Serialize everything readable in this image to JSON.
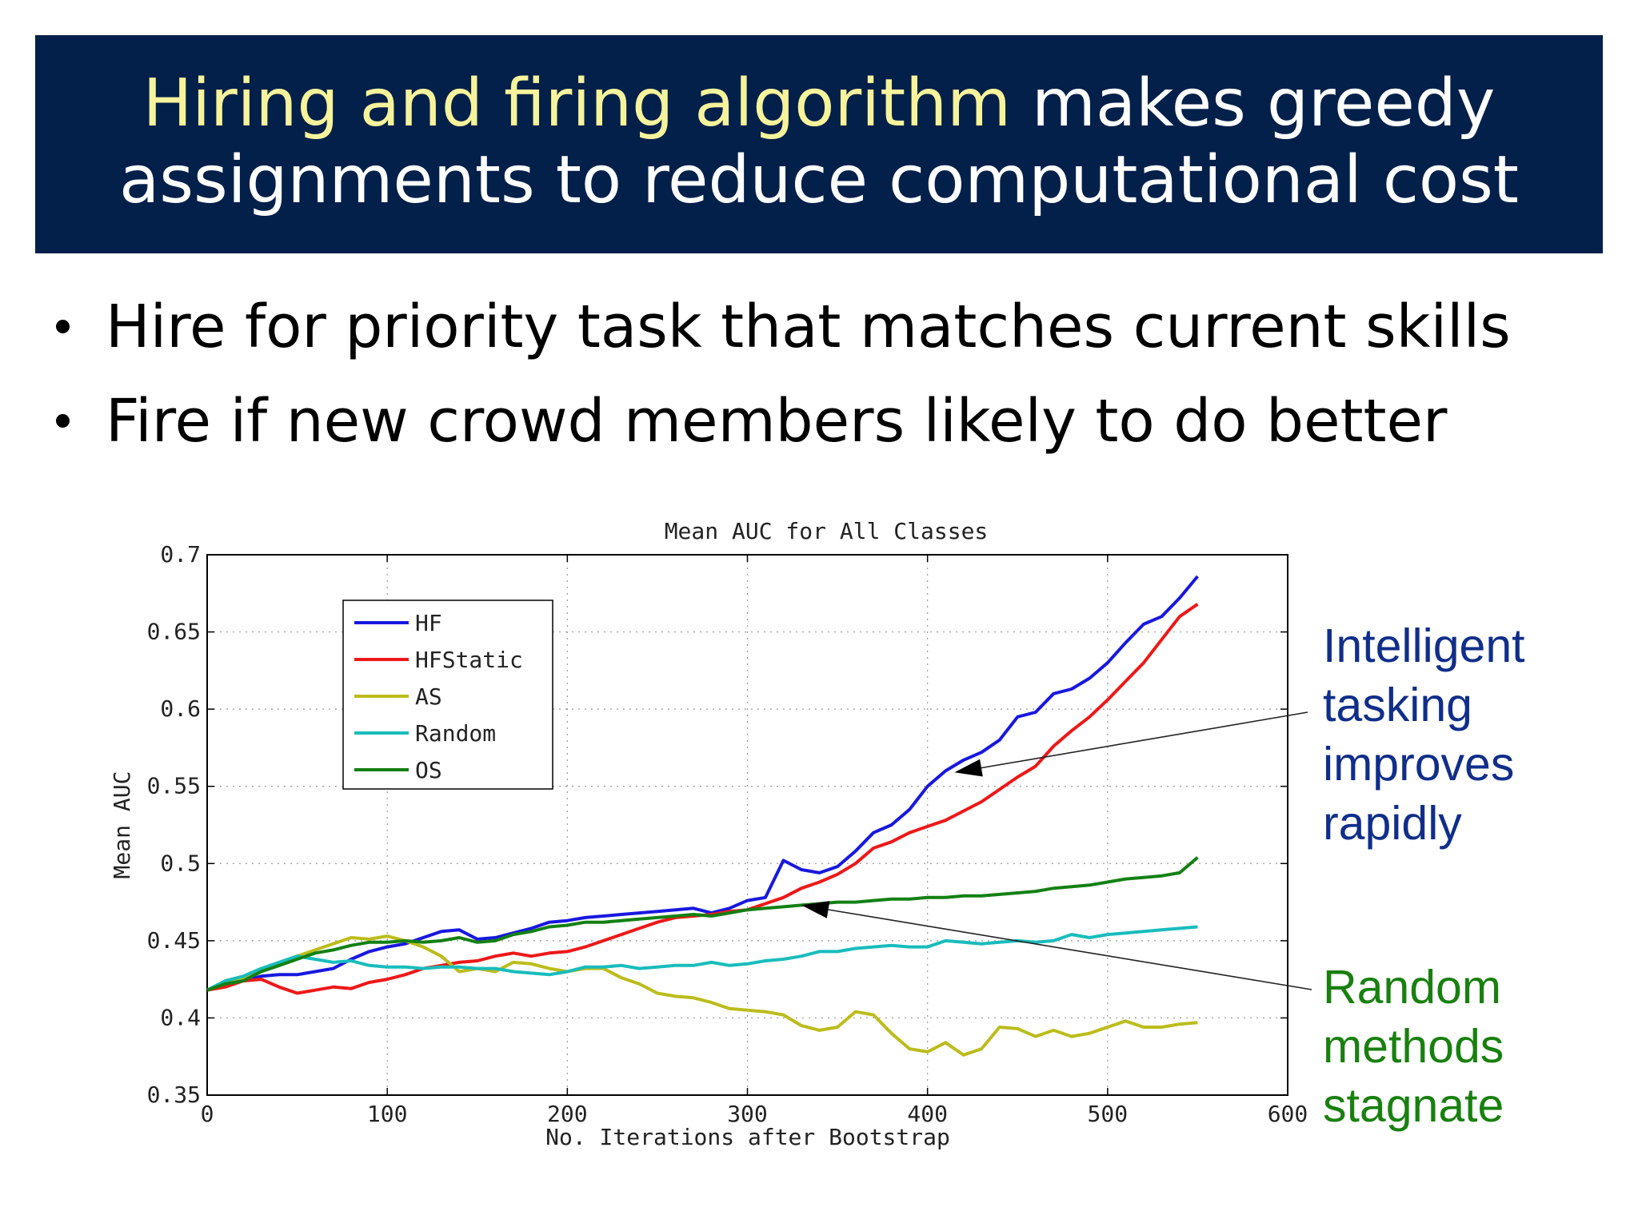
{
  "slide": {
    "title_highlight": "Hiring and firing algorithm",
    "title_rest_line1": " makes greedy",
    "title_line2": "assignments to reduce computational cost",
    "bullets": [
      "Hire for priority task that matches current skills",
      "Fire if new crowd members likely to do better"
    ],
    "annotations": {
      "intelligent": [
        "Intelligent",
        "tasking",
        "improves",
        "rapidly"
      ],
      "random": [
        "Random",
        "methods",
        "stagnate"
      ]
    }
  },
  "colors": {
    "title_bg": "#03204a",
    "title_highlight": "#f6f39b",
    "HF": "#1818e0",
    "HFStatic": "#ee1818",
    "AS": "#bcbc1c",
    "Random": "#19bcbc",
    "OS": "#138013",
    "ann_intelligent": "#102e8a",
    "ann_random": "#19800f"
  },
  "chart_data": {
    "type": "line",
    "title": "Mean AUC for All Classes",
    "xlabel": "No. Iterations after Bootstrap",
    "ylabel": "Mean AUC",
    "xlim": [
      0,
      600
    ],
    "ylim": [
      0.35,
      0.7
    ],
    "xticks": [
      0,
      100,
      200,
      300,
      400,
      500,
      600
    ],
    "yticks": [
      0.35,
      0.4,
      0.45,
      0.5,
      0.55,
      0.6,
      0.65,
      0.7
    ],
    "xtick_labels": [
      "0",
      "100",
      "200",
      "300",
      "400",
      "500",
      "600"
    ],
    "ytick_labels": [
      "0.35",
      "0.4",
      "0.45",
      "0.5",
      "0.55",
      "0.6",
      "0.65",
      "0.7"
    ],
    "grid": true,
    "legend_position": "top-left",
    "x": [
      0,
      10,
      20,
      30,
      40,
      50,
      60,
      70,
      80,
      90,
      100,
      110,
      120,
      130,
      140,
      150,
      160,
      170,
      180,
      190,
      200,
      210,
      220,
      230,
      240,
      250,
      260,
      270,
      280,
      290,
      300,
      310,
      320,
      330,
      340,
      350,
      360,
      370,
      380,
      390,
      400,
      410,
      420,
      430,
      440,
      450,
      460,
      470,
      480,
      490,
      500,
      510,
      520,
      530,
      540,
      550
    ],
    "series": [
      {
        "name": "HF",
        "values": [
          0.418,
          0.421,
          0.424,
          0.427,
          0.428,
          0.428,
          0.43,
          0.432,
          0.438,
          0.443,
          0.446,
          0.448,
          0.452,
          0.456,
          0.457,
          0.451,
          0.452,
          0.455,
          0.458,
          0.462,
          0.463,
          0.465,
          0.466,
          0.467,
          0.468,
          0.469,
          0.47,
          0.471,
          0.468,
          0.471,
          0.476,
          0.478,
          0.502,
          0.496,
          0.494,
          0.498,
          0.508,
          0.52,
          0.525,
          0.535,
          0.55,
          0.56,
          0.567,
          0.572,
          0.58,
          0.595,
          0.598,
          0.61,
          0.613,
          0.62,
          0.63,
          0.643,
          0.655,
          0.66,
          0.672,
          0.686
        ]
      },
      {
        "name": "HFStatic",
        "values": [
          0.418,
          0.42,
          0.424,
          0.425,
          0.42,
          0.416,
          0.418,
          0.42,
          0.419,
          0.423,
          0.425,
          0.428,
          0.432,
          0.434,
          0.436,
          0.437,
          0.44,
          0.442,
          0.44,
          0.442,
          0.443,
          0.446,
          0.45,
          0.454,
          0.458,
          0.462,
          0.465,
          0.466,
          0.467,
          0.469,
          0.47,
          0.474,
          0.478,
          0.484,
          0.488,
          0.493,
          0.5,
          0.51,
          0.514,
          0.52,
          0.524,
          0.528,
          0.534,
          0.54,
          0.548,
          0.556,
          0.563,
          0.576,
          0.586,
          0.595,
          0.606,
          0.618,
          0.63,
          0.645,
          0.66,
          0.668
        ]
      },
      {
        "name": "AS",
        "values": [
          0.418,
          0.422,
          0.426,
          0.43,
          0.436,
          0.44,
          0.444,
          0.448,
          0.452,
          0.451,
          0.453,
          0.45,
          0.446,
          0.44,
          0.43,
          0.432,
          0.43,
          0.436,
          0.435,
          0.432,
          0.43,
          0.432,
          0.432,
          0.426,
          0.422,
          0.416,
          0.414,
          0.413,
          0.41,
          0.406,
          0.405,
          0.404,
          0.402,
          0.395,
          0.392,
          0.394,
          0.404,
          0.402,
          0.39,
          0.38,
          0.378,
          0.384,
          0.376,
          0.38,
          0.394,
          0.393,
          0.388,
          0.392,
          0.388,
          0.39,
          0.394,
          0.398,
          0.394,
          0.394,
          0.396,
          0.397
        ]
      },
      {
        "name": "Random",
        "values": [
          0.418,
          0.424,
          0.427,
          0.432,
          0.436,
          0.44,
          0.438,
          0.436,
          0.437,
          0.434,
          0.433,
          0.433,
          0.432,
          0.433,
          0.433,
          0.432,
          0.432,
          0.43,
          0.429,
          0.428,
          0.43,
          0.433,
          0.433,
          0.434,
          0.432,
          0.433,
          0.434,
          0.434,
          0.436,
          0.434,
          0.435,
          0.437,
          0.438,
          0.44,
          0.443,
          0.443,
          0.445,
          0.446,
          0.447,
          0.446,
          0.446,
          0.45,
          0.449,
          0.448,
          0.449,
          0.45,
          0.449,
          0.45,
          0.454,
          0.452,
          0.454,
          0.455,
          0.456,
          0.457,
          0.458,
          0.459
        ]
      },
      {
        "name": "OS",
        "values": [
          0.418,
          0.422,
          0.424,
          0.43,
          0.434,
          0.438,
          0.442,
          0.444,
          0.447,
          0.449,
          0.449,
          0.45,
          0.449,
          0.45,
          0.452,
          0.449,
          0.45,
          0.454,
          0.456,
          0.459,
          0.46,
          0.462,
          0.462,
          0.463,
          0.464,
          0.465,
          0.466,
          0.467,
          0.466,
          0.468,
          0.47,
          0.471,
          0.472,
          0.473,
          0.474,
          0.475,
          0.475,
          0.476,
          0.477,
          0.477,
          0.478,
          0.478,
          0.479,
          0.479,
          0.48,
          0.481,
          0.482,
          0.484,
          0.485,
          0.486,
          0.488,
          0.49,
          0.491,
          0.492,
          0.494,
          0.504
        ]
      }
    ],
    "annotations": [
      {
        "text": "Intelligent tasking improves rapidly",
        "arrow_to_x": 415,
        "arrow_to_y": 0.559
      },
      {
        "text": "Random methods stagnate",
        "arrow_to_x": 330,
        "arrow_to_y": 0.473
      }
    ]
  }
}
